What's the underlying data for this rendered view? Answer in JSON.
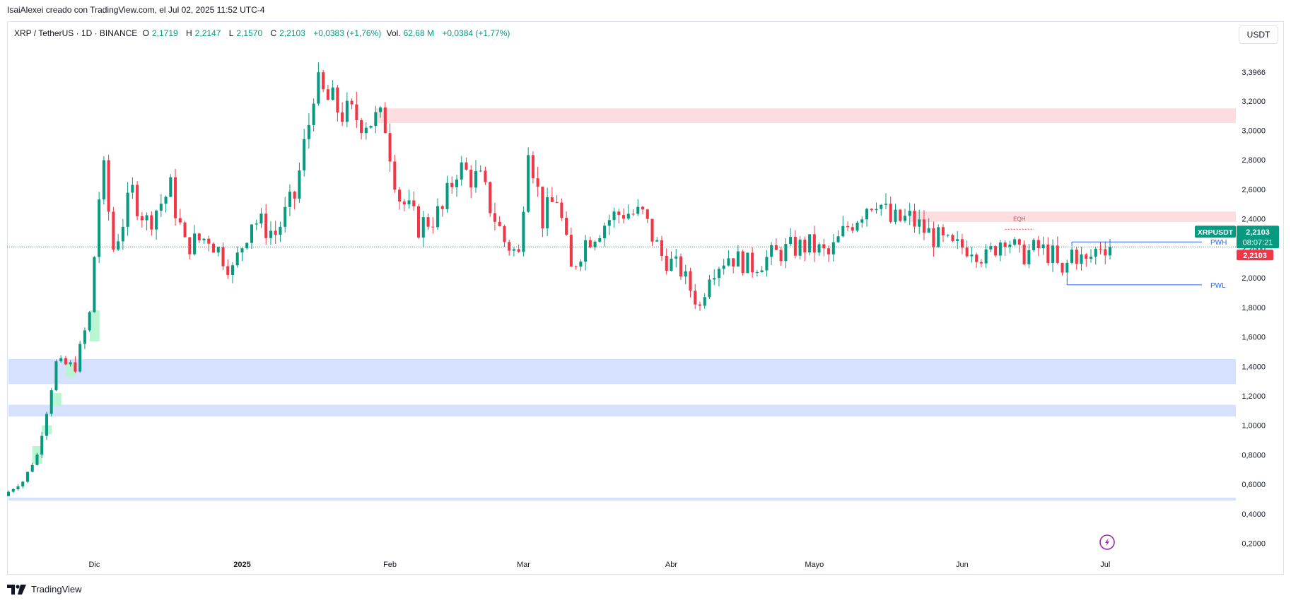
{
  "header": {
    "caption": "IsaiAlexei creado con TradingView.com, el Jul 02, 2025 11:52 UTC-4"
  },
  "legend": {
    "symbol": "XRP / TetherUS · 1D · BINANCE",
    "o_label": "O",
    "o_value": "2,1719",
    "h_label": "H",
    "h_value": "2,2147",
    "l_label": "L",
    "l_value": "2,1570",
    "c_label": "C",
    "c_value": "2,2103",
    "change": "+0,0383 (+1,76%)",
    "vol_label": "Vol.",
    "vol_value": "62,68 M",
    "vol_change": "+0,0384 (+1,77%)"
  },
  "currency_button": "USDT",
  "footer": {
    "brand": "TradingView"
  },
  "colors": {
    "up": "#089981",
    "down": "#f23645",
    "supply_zone": "#fddde0",
    "demand_zone": "#d6e2fd",
    "fvg": "#b8f5d0",
    "level_line": "#2962ff"
  },
  "chart_data": {
    "type": "candlestick",
    "title": "XRP / TetherUS · 1D · BINANCE",
    "x_tick_labels": [
      "Dic",
      "2025",
      "Feb",
      "Mar",
      "Abr",
      "Mayo",
      "Jun",
      "Jul"
    ],
    "y_tick_labels": [
      "3,3966",
      "3,2000",
      "3,0000",
      "2,8000",
      "2,6000",
      "2,4000",
      "2,2000",
      "2,0000",
      "1,8000",
      "1,6000",
      "1,4000",
      "1,2000",
      "1,0000",
      "0,8000",
      "0,6000",
      "0,4000",
      "0,2000"
    ],
    "ylim": [
      0.1,
      3.55
    ],
    "price_scale": "linear",
    "grid": false,
    "last_price": {
      "symbol": "XRPUSDT",
      "price": "2,2103",
      "countdown": "08:07:21",
      "value": 2.2103
    },
    "price_tag_red": "2,2103",
    "levels": [
      {
        "label": "PWH",
        "value": 2.244
      },
      {
        "label": "PWL",
        "value": 1.953
      }
    ],
    "annotations": [
      {
        "label": "EQH",
        "value": 2.33
      }
    ],
    "zones": [
      {
        "kind": "supply",
        "from": 3.05,
        "to": 3.15
      },
      {
        "kind": "supply",
        "from": 2.38,
        "to": 2.45
      },
      {
        "kind": "demand",
        "from": 1.28,
        "to": 1.45
      },
      {
        "kind": "demand",
        "from": 1.06,
        "to": 1.14
      },
      {
        "kind": "demand",
        "from": 0.49,
        "to": 0.51
      }
    ],
    "approx_close_path": [
      {
        "date": "2024-11-13",
        "close": 0.55
      },
      {
        "date": "2024-11-16",
        "close": 0.62
      },
      {
        "date": "2024-11-19",
        "close": 0.8
      },
      {
        "date": "2024-11-21",
        "close": 1.1
      },
      {
        "date": "2024-11-23",
        "close": 1.42
      },
      {
        "date": "2024-11-27",
        "close": 1.4
      },
      {
        "date": "2024-11-30",
        "close": 1.75
      },
      {
        "date": "2024-12-02",
        "close": 2.55
      },
      {
        "date": "2024-12-03",
        "close": 2.7
      },
      {
        "date": "2024-12-05",
        "close": 2.2
      },
      {
        "date": "2024-12-09",
        "close": 2.58
      },
      {
        "date": "2024-12-12",
        "close": 2.38
      },
      {
        "date": "2024-12-17",
        "close": 2.6
      },
      {
        "date": "2024-12-20",
        "close": 2.22
      },
      {
        "date": "2024-12-25",
        "close": 2.28
      },
      {
        "date": "2024-12-30",
        "close": 2.05
      },
      {
        "date": "2025-01-03",
        "close": 2.4
      },
      {
        "date": "2025-01-08",
        "close": 2.3
      },
      {
        "date": "2025-01-12",
        "close": 2.55
      },
      {
        "date": "2025-01-15",
        "close": 3.05
      },
      {
        "date": "2025-01-16",
        "close": 3.3
      },
      {
        "date": "2025-01-19",
        "close": 3.2
      },
      {
        "date": "2025-01-23",
        "close": 3.1
      },
      {
        "date": "2025-01-27",
        "close": 3.08
      },
      {
        "date": "2025-01-31",
        "close": 3.05
      },
      {
        "date": "2025-02-02",
        "close": 2.7
      },
      {
        "date": "2025-02-03",
        "close": 2.55
      },
      {
        "date": "2025-02-07",
        "close": 2.35
      },
      {
        "date": "2025-02-12",
        "close": 2.45
      },
      {
        "date": "2025-02-15",
        "close": 2.75
      },
      {
        "date": "2025-02-20",
        "close": 2.65
      },
      {
        "date": "2025-02-25",
        "close": 2.25
      },
      {
        "date": "2025-02-28",
        "close": 2.15
      },
      {
        "date": "2025-03-02",
        "close": 2.95
      },
      {
        "date": "2025-03-05",
        "close": 2.4
      },
      {
        "date": "2025-03-08",
        "close": 2.55
      },
      {
        "date": "2025-03-11",
        "close": 2.05
      },
      {
        "date": "2025-03-14",
        "close": 2.25
      },
      {
        "date": "2025-03-19",
        "close": 2.4
      },
      {
        "date": "2025-03-22",
        "close": 2.45
      },
      {
        "date": "2025-03-26",
        "close": 2.42
      },
      {
        "date": "2025-03-30",
        "close": 2.15
      },
      {
        "date": "2025-04-03",
        "close": 2.05
      },
      {
        "date": "2025-04-07",
        "close": 1.8
      },
      {
        "date": "2025-04-09",
        "close": 2.05
      },
      {
        "date": "2025-04-13",
        "close": 2.15
      },
      {
        "date": "2025-04-18",
        "close": 2.08
      },
      {
        "date": "2025-04-22",
        "close": 2.15
      },
      {
        "date": "2025-04-26",
        "close": 2.2
      },
      {
        "date": "2025-04-30",
        "close": 2.22
      },
      {
        "date": "2025-05-04",
        "close": 2.15
      },
      {
        "date": "2025-05-08",
        "close": 2.35
      },
      {
        "date": "2025-05-12",
        "close": 2.5
      },
      {
        "date": "2025-05-14",
        "close": 2.55
      },
      {
        "date": "2025-05-17",
        "close": 2.38
      },
      {
        "date": "2025-05-21",
        "close": 2.4
      },
      {
        "date": "2025-05-25",
        "close": 2.3
      },
      {
        "date": "2025-05-30",
        "close": 2.2
      },
      {
        "date": "2025-06-03",
        "close": 2.22
      },
      {
        "date": "2025-06-06",
        "close": 2.13
      },
      {
        "date": "2025-06-10",
        "close": 2.3
      },
      {
        "date": "2025-06-13",
        "close": 2.15
      },
      {
        "date": "2025-06-17",
        "close": 2.2
      },
      {
        "date": "2025-06-20",
        "close": 2.15
      },
      {
        "date": "2025-06-22",
        "close": 2.0
      },
      {
        "date": "2025-06-24",
        "close": 2.18
      },
      {
        "date": "2025-06-27",
        "close": 2.1
      },
      {
        "date": "2025-06-30",
        "close": 2.23
      },
      {
        "date": "2025-07-02",
        "close": 2.2103
      }
    ]
  }
}
